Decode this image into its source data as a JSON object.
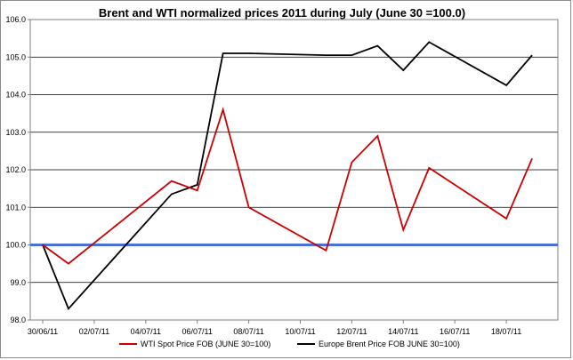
{
  "chart_data": {
    "type": "line",
    "title": "Brent and WTI normalized prices 2011 during July  (June 30 =100.0)",
    "xlabel": "",
    "ylabel": "",
    "x": [
      "30/06/11",
      "01/07/11",
      "05/07/11",
      "06/07/11",
      "07/07/11",
      "08/07/11",
      "11/07/11",
      "12/07/11",
      "13/07/11",
      "14/07/11",
      "15/07/11",
      "18/07/11",
      "19/07/11"
    ],
    "x_tick_labels": [
      "30/06/11",
      "02/07/11",
      "04/07/11",
      "06/07/11",
      "08/07/11",
      "10/07/11",
      "12/07/11",
      "14/07/11",
      "16/07/11",
      "18/07/11"
    ],
    "ylim": [
      98.0,
      106.0
    ],
    "y_tick_labels": [
      "98.0",
      "99.0",
      "100.0",
      "101.0",
      "102.0",
      "103.0",
      "104.0",
      "105.0",
      "106.0"
    ],
    "grid": "horizontal",
    "legend": "bottom",
    "series": [
      {
        "name": "WTI Spot Price FOB (JUNE 30=100)",
        "color": "#cc0000",
        "values": [
          100.0,
          99.5,
          101.7,
          101.45,
          103.6,
          101.0,
          99.85,
          102.2,
          102.9,
          100.4,
          102.05,
          100.7,
          102.3
        ]
      },
      {
        "name": "Europe Brent Price FOB JUNE 30=100)",
        "color": "#000000",
        "values": [
          100.0,
          98.3,
          101.35,
          101.6,
          105.1,
          105.1,
          105.05,
          105.05,
          105.3,
          104.65,
          105.4,
          104.25,
          105.05
        ]
      }
    ],
    "reference_line": {
      "value": 100.0,
      "color": "#4a6fd8"
    }
  }
}
